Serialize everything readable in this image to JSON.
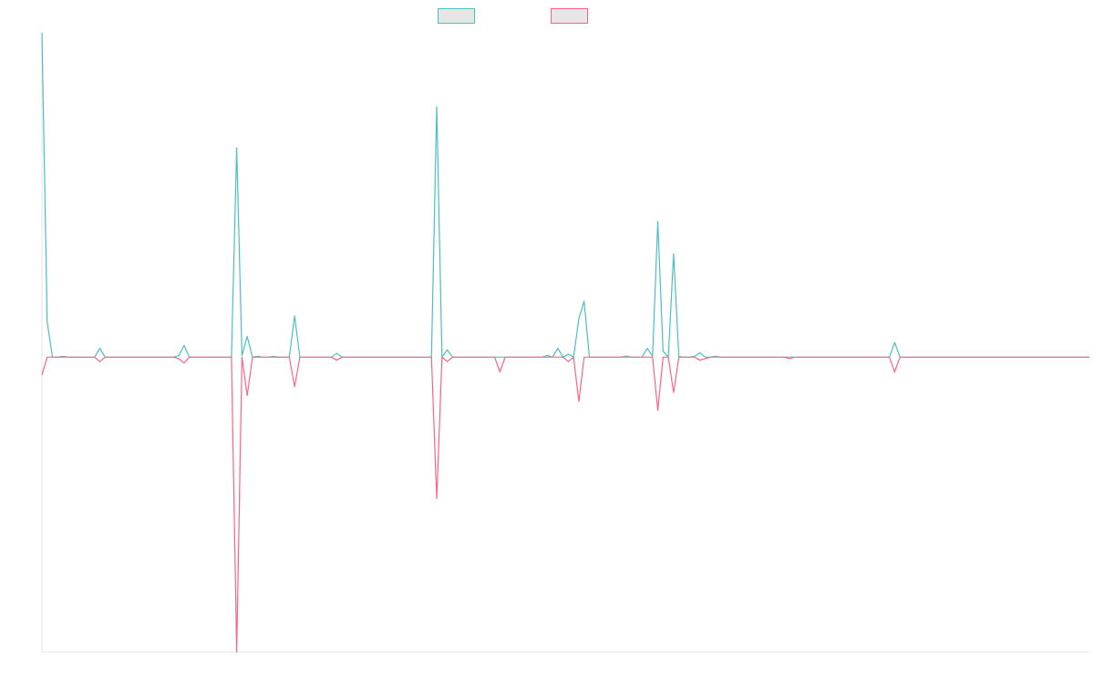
{
  "colors": {
    "series_a": "#4bc0c0",
    "series_a_fill": "#e6e6e6",
    "series_b": "#ff6384",
    "series_b_fill": "#e6e6e6",
    "axis": "#e6e6e6"
  },
  "chart_data": {
    "type": "line",
    "title": "",
    "xlabel": "",
    "ylabel": "",
    "legend_position": "top",
    "grid": false,
    "x_count": 200,
    "ylim": [
      -100,
      110
    ],
    "series": [
      {
        "color_key": "series_a",
        "spikes": [
          [
            0,
            110
          ],
          [
            1,
            12
          ],
          [
            2,
            0
          ],
          [
            4,
            0.3
          ],
          [
            11,
            3
          ],
          [
            26,
            0.5
          ],
          [
            27,
            4
          ],
          [
            37,
            71
          ],
          [
            38,
            0.5
          ],
          [
            39,
            7
          ],
          [
            41,
            0.3
          ],
          [
            44,
            0.3
          ],
          [
            48,
            14
          ],
          [
            56,
            1.3
          ],
          [
            75,
            85
          ],
          [
            76,
            0
          ],
          [
            77,
            2.5
          ],
          [
            96,
            0.6
          ],
          [
            98,
            3
          ],
          [
            100,
            1
          ],
          [
            102,
            13
          ],
          [
            103,
            19
          ],
          [
            111,
            0.4
          ],
          [
            115,
            3
          ],
          [
            116,
            0.3
          ],
          [
            117,
            46
          ],
          [
            118,
            2
          ],
          [
            120,
            35
          ],
          [
            121,
            0.2
          ],
          [
            124,
            0.3
          ],
          [
            125,
            1.5
          ],
          [
            128,
            0.3
          ],
          [
            162,
            5
          ]
        ]
      },
      {
        "color_key": "series_b",
        "spikes": [
          [
            0,
            -6
          ],
          [
            11,
            -1.5
          ],
          [
            26,
            -0.5
          ],
          [
            27,
            -2
          ],
          [
            37,
            -100
          ],
          [
            39,
            -13
          ],
          [
            48,
            -10
          ],
          [
            56,
            -1
          ],
          [
            75,
            -48
          ],
          [
            77,
            -1.5
          ],
          [
            87,
            -5
          ],
          [
            100,
            -1.5
          ],
          [
            102,
            -15
          ],
          [
            117,
            -18
          ],
          [
            120,
            -12
          ],
          [
            125,
            -1
          ],
          [
            126,
            -0.5
          ],
          [
            142,
            -0.5
          ],
          [
            162,
            -5
          ]
        ]
      }
    ]
  }
}
